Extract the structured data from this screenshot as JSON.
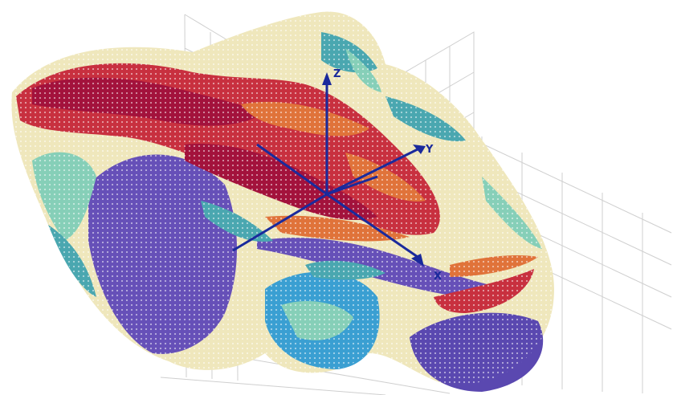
{
  "axes": {
    "x_label": "X",
    "y_label": "Y",
    "z_label": "Z",
    "color": "#1a2a9c"
  },
  "colors": {
    "deep_red": "#a3123c",
    "red": "#c8303f",
    "orange": "#e0733a",
    "sand": "#e9d9a2",
    "cream": "#efe7bc",
    "mint": "#86cfb8",
    "teal": "#4aa7b0",
    "sky": "#3a9fd2",
    "violet": "#6650b8",
    "indigo": "#4a3f9a",
    "grid": "#cfcfcf"
  },
  "description_icon": "geological-block-model-3d"
}
